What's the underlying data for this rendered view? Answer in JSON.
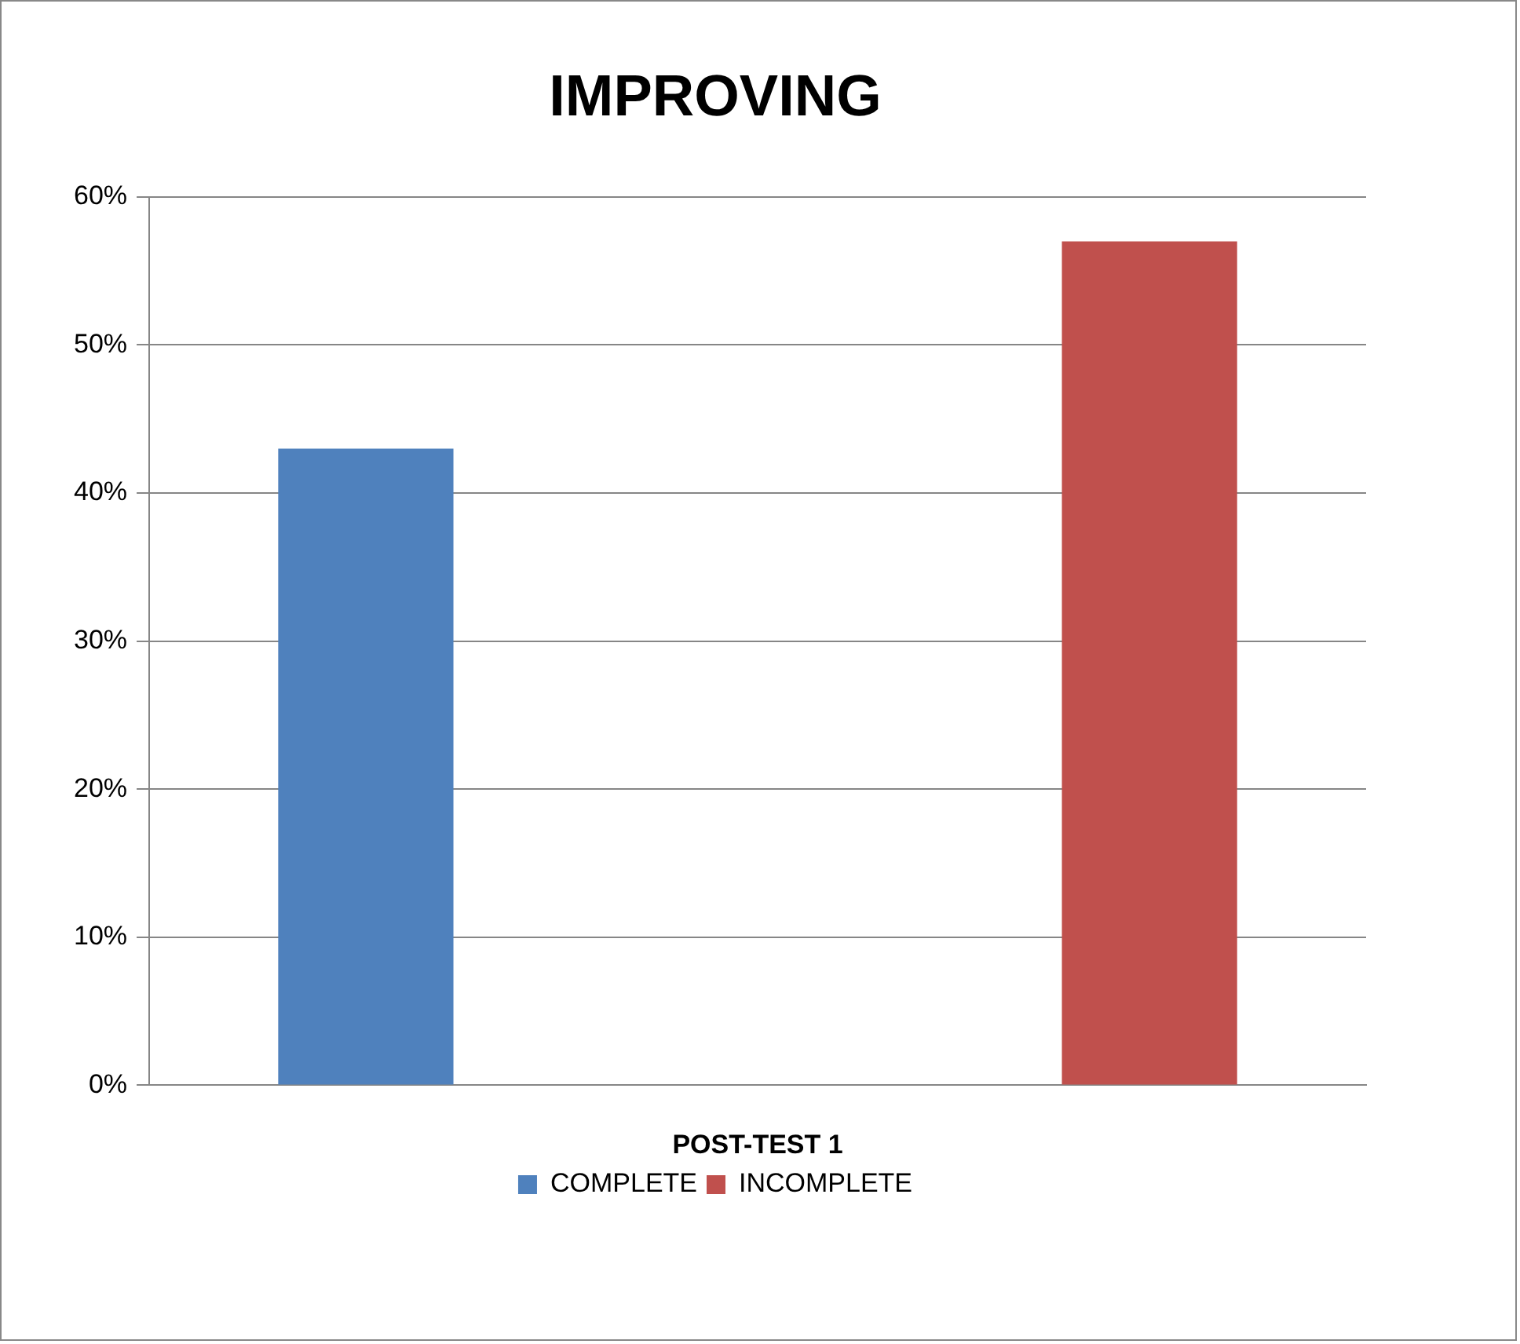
{
  "chart_data": {
    "type": "bar",
    "title": "IMPROVING",
    "xlabel": "POST-TEST 1",
    "categories": [
      null,
      null
    ],
    "series": [
      {
        "name": "COMPLETE",
        "color": "#4f81bd",
        "values": [
          43,
          null
        ]
      },
      {
        "name": "INCOMPLETE",
        "color": "#c0504d",
        "values": [
          null,
          57
        ]
      }
    ],
    "ylim": [
      0,
      60
    ],
    "yticks": [
      {
        "value": 0,
        "label": "0%"
      },
      {
        "value": 10,
        "label": "10%"
      },
      {
        "value": 20,
        "label": "20%"
      },
      {
        "value": 30,
        "label": "30%"
      },
      {
        "value": 40,
        "label": "40%"
      },
      {
        "value": 50,
        "label": "50%"
      },
      {
        "value": 60,
        "label": "60%"
      }
    ],
    "grid": "y",
    "legend": "bottom"
  }
}
